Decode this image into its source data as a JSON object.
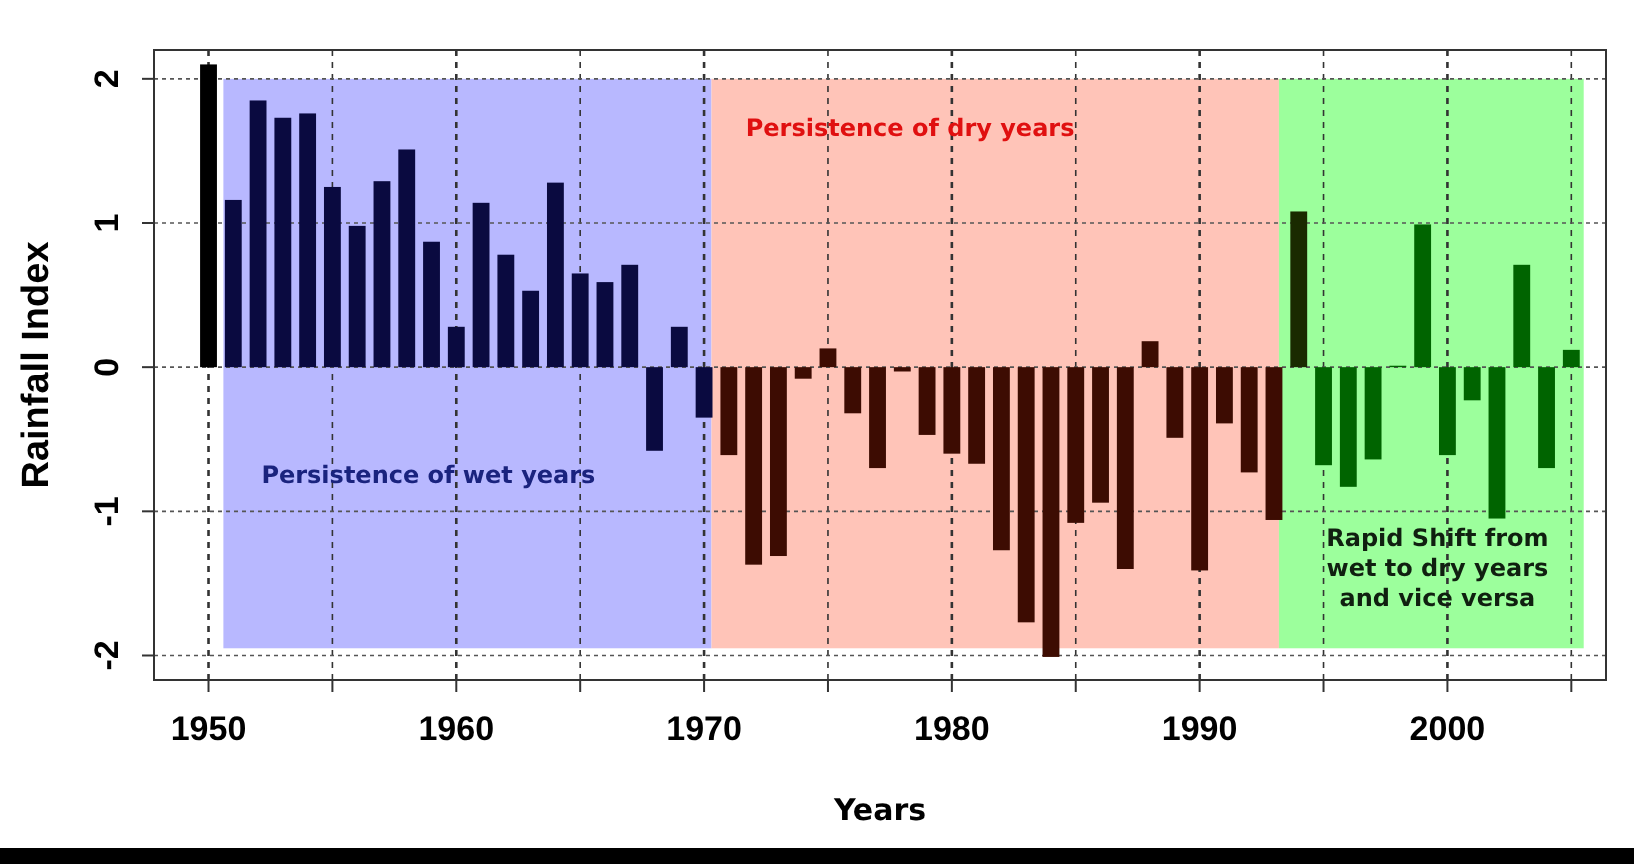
{
  "chart_data": {
    "type": "bar",
    "xlabel": "Years",
    "ylabel": "Rainfall Index",
    "x": [
      1950,
      1951,
      1952,
      1953,
      1954,
      1955,
      1956,
      1957,
      1958,
      1959,
      1960,
      1961,
      1962,
      1963,
      1964,
      1965,
      1966,
      1967,
      1968,
      1969,
      1970,
      1971,
      1972,
      1973,
      1974,
      1975,
      1976,
      1977,
      1978,
      1979,
      1980,
      1981,
      1982,
      1983,
      1984,
      1985,
      1986,
      1987,
      1988,
      1989,
      1990,
      1991,
      1992,
      1993,
      1994,
      1995,
      1996,
      1997,
      1998,
      1999,
      2000,
      2001,
      2002,
      2003,
      2004,
      2005
    ],
    "values": [
      2.1,
      1.16,
      1.85,
      1.73,
      1.76,
      1.25,
      0.98,
      1.29,
      1.51,
      0.87,
      0.28,
      1.14,
      0.78,
      0.53,
      1.28,
      0.65,
      0.59,
      0.71,
      -0.58,
      0.28,
      -0.35,
      -0.61,
      -1.37,
      -1.31,
      -0.08,
      0.13,
      -0.32,
      -0.7,
      -0.03,
      -0.47,
      -0.6,
      -0.67,
      -1.27,
      -1.77,
      -2.01,
      -1.08,
      -0.94,
      -1.4,
      0.18,
      -0.49,
      -1.41,
      -0.39,
      -0.73,
      -1.06,
      1.08,
      -0.68,
      -0.83,
      -0.64,
      0.01,
      0.99,
      -0.61,
      -0.23,
      -1.05,
      0.71,
      -0.7,
      0.12
    ],
    "colors": [
      "#000000",
      "#0a0a40",
      "#0a0a40",
      "#0a0a40",
      "#0a0a40",
      "#0a0a40",
      "#0a0a40",
      "#0a0a40",
      "#0a0a40",
      "#0a0a40",
      "#0a0a40",
      "#0a0a40",
      "#0a0a40",
      "#0a0a40",
      "#0a0a40",
      "#0a0a40",
      "#0a0a40",
      "#0a0a40",
      "#0a0a40",
      "#0a0a40",
      "#0a0a40",
      "#3d0c02",
      "#3d0c02",
      "#3d0c02",
      "#3d0c02",
      "#3d0c02",
      "#3d0c02",
      "#3d0c02",
      "#3d0c02",
      "#3d0c02",
      "#3d0c02",
      "#3d0c02",
      "#3d0c02",
      "#3d0c02",
      "#3d0c02",
      "#3d0c02",
      "#3d0c02",
      "#3d0c02",
      "#3d0c02",
      "#3d0c02",
      "#3d0c02",
      "#3d0c02",
      "#3d0c02",
      "#3d0c02",
      "#1a2a00",
      "#006400",
      "#006400",
      "#006400",
      "#006400",
      "#006400",
      "#006400",
      "#006400",
      "#006400",
      "#006400",
      "#006400",
      "#006400"
    ],
    "xlim": [
      1947.8,
      2006.4
    ],
    "ylim": [
      -2.17,
      2.2
    ],
    "xticks": [
      1950,
      {
        "value": 1955,
        "label": null
      },
      1960,
      {
        "value": 1965,
        "label": null
      },
      1970,
      {
        "value": 1975,
        "label": null
      },
      1980,
      {
        "value": 1985,
        "label": null
      },
      1990,
      {
        "value": 1995,
        "label": null
      },
      2000,
      {
        "value": 2005,
        "label": null
      }
    ],
    "yticks": [
      -2,
      -1,
      0,
      1,
      2
    ],
    "grid": true,
    "bands": [
      {
        "axis": "x",
        "from": 1950.6,
        "to": 1970.3,
        "color": "#b8b8ff",
        "label": "Persistence of wet years"
      },
      {
        "axis": "x",
        "from": 1970.3,
        "to": 1993.2,
        "color": "#ffc4b8",
        "label": "Persistence of dry years"
      },
      {
        "axis": "x",
        "from": 1993.2,
        "to": 2005.5,
        "color": "#9cff9c",
        "label": "Rapid Shift from wet to dry years and vice versa"
      }
    ]
  }
}
